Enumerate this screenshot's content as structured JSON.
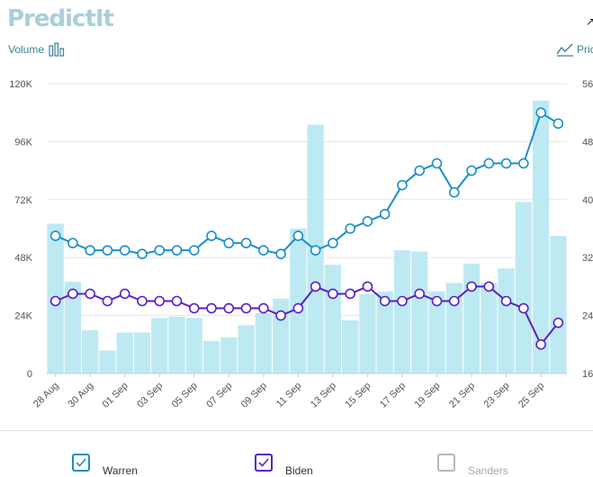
{
  "header": {
    "logo_text": "PredictIt",
    "volume_label": "Volume",
    "price_label": "Pric",
    "corner_mark": "↗"
  },
  "legend": [
    {
      "label": "Warren",
      "checked": true,
      "color": "#1a8fc9"
    },
    {
      "label": "Biden",
      "checked": true,
      "color": "#5a1fc7"
    },
    {
      "label": "Sanders",
      "checked": false,
      "color": "#b8b8b8"
    }
  ],
  "chart_data": {
    "type": "bar+line",
    "x_tick_labels": [
      "28 Aug",
      "30 Aug",
      "01 Sep",
      "03 Sep",
      "05 Sep",
      "07 Sep",
      "09 Sep",
      "11 Sep",
      "13 Sep",
      "15 Sep",
      "17 Sep",
      "19 Sep",
      "21 Sep",
      "23 Sep",
      "25 Sep"
    ],
    "left_axis": {
      "ticks": [
        "0",
        "24K",
        "48K",
        "72K",
        "96K",
        "120K"
      ],
      "range": [
        0,
        120000
      ]
    },
    "right_axis": {
      "ticks": [
        "16",
        "24",
        "32",
        "40",
        "48",
        "56"
      ],
      "range": [
        16,
        56
      ]
    },
    "volume": {
      "color": "#bdeaf2",
      "values": [
        62000,
        38000,
        18000,
        9500,
        17000,
        17000,
        23000,
        23500,
        23000,
        13500,
        15000,
        20000,
        25000,
        31000,
        60000,
        103000,
        45000,
        22000,
        33000,
        34000,
        51000,
        50500,
        34000,
        37500,
        45500,
        37500,
        43500,
        71000,
        113000,
        57000
      ]
    },
    "series": [
      {
        "name": "Warren",
        "color": "#1a8fc9",
        "values": [
          35,
          34,
          33,
          33,
          33,
          32.5,
          33,
          33,
          33,
          35,
          34,
          34,
          33,
          32.5,
          35,
          33,
          34,
          36,
          37,
          38,
          42,
          44,
          45,
          41,
          44,
          45,
          45,
          45,
          52,
          50.5
        ]
      },
      {
        "name": "Biden",
        "color": "#5a1fc7",
        "values": [
          26,
          27,
          27,
          26,
          27,
          26,
          26,
          26,
          25,
          25,
          25,
          25,
          25,
          24,
          25,
          28,
          27,
          27,
          28,
          26,
          26,
          27,
          26,
          26,
          28,
          28,
          26,
          25,
          20,
          23
        ]
      }
    ]
  }
}
